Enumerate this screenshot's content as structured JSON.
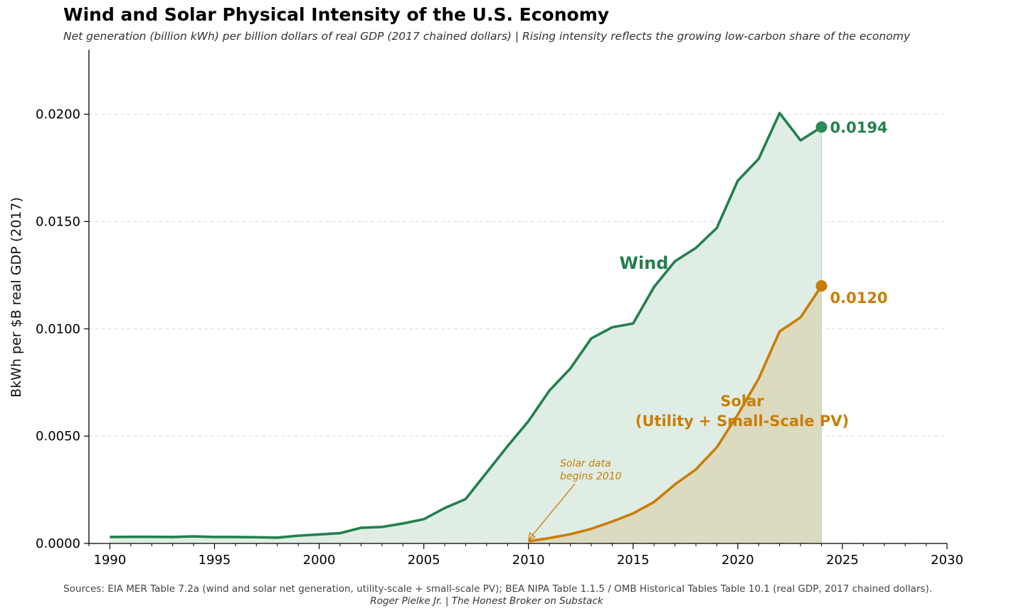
{
  "header": {
    "title": "Wind and Solar Physical Intensity of the U.S. Economy",
    "subtitle": "Net generation (billion kWh) per billion dollars of real GDP (2017 chained dollars)  |  Rising intensity reflects the growing low-carbon share of the economy"
  },
  "footer": {
    "source": "Sources: EIA MER Table 7.2a (wind and solar net generation, utility-scale + small-scale PV); BEA NIPA Table 1.1.5 / OMB Historical Tables Table 10.1 (real GDP, 2017 chained dollars).",
    "credit": "Roger Pielke Jr.  |  The Honest Broker on Substack"
  },
  "colors": {
    "wind": "#23804e",
    "solar": "#c97d08",
    "wind_fill": "#dfede4",
    "solar_fill": "#dcdbc0",
    "grid": "#d9d9d9",
    "axis": "#000000"
  },
  "chart_data": {
    "type": "area",
    "title": "Wind and Solar Physical Intensity of the U.S. Economy",
    "subtitle": "Net generation (billion kWh) per billion dollars of real GDP (2017 chained dollars)  |  Rising intensity reflects the growing low-carbon share of the economy",
    "xlabel": "",
    "ylabel": "BkWh per $B real GDP (2017)",
    "xlim": [
      1989,
      2030
    ],
    "ylim": [
      0,
      0.023
    ],
    "xticks": [
      1990,
      1995,
      2000,
      2005,
      2010,
      2015,
      2020,
      2025,
      2030
    ],
    "yticks": [
      0.0,
      0.005,
      0.01,
      0.015,
      0.02
    ],
    "ytick_labels": [
      "0.0000",
      "0.0050",
      "0.0100",
      "0.0150",
      "0.0200"
    ],
    "grid": "horizontal dashed",
    "series": [
      {
        "name": "Wind",
        "x": [
          1990,
          1991,
          1992,
          1993,
          1994,
          1995,
          1996,
          1997,
          1998,
          1999,
          2000,
          2001,
          2002,
          2003,
          2004,
          2005,
          2006,
          2007,
          2008,
          2009,
          2010,
          2011,
          2012,
          2013,
          2014,
          2015,
          2016,
          2017,
          2018,
          2019,
          2020,
          2021,
          2022,
          2023,
          2024
        ],
        "values": [
          0.0003,
          0.00031,
          0.00031,
          0.0003,
          0.00033,
          0.0003,
          0.0003,
          0.00029,
          0.00027,
          0.00036,
          0.00042,
          0.00048,
          0.00073,
          0.00077,
          0.00093,
          0.00113,
          0.00165,
          0.00207,
          0.0033,
          0.00453,
          0.0057,
          0.00712,
          0.00815,
          0.00955,
          0.01007,
          0.01025,
          0.01195,
          0.01315,
          0.01377,
          0.0147,
          0.0169,
          0.01792,
          0.02005,
          0.01878,
          0.0194
        ]
      },
      {
        "name": "Solar\n(Utility + Small-Scale PV)",
        "x": [
          2010,
          2011,
          2012,
          2013,
          2014,
          2015,
          2016,
          2017,
          2018,
          2019,
          2020,
          2021,
          2022,
          2023,
          2024
        ],
        "values": [
          0.0001,
          0.00025,
          0.00043,
          0.00068,
          0.00102,
          0.0014,
          0.00193,
          0.00275,
          0.00345,
          0.00448,
          0.006,
          0.00768,
          0.00988,
          0.01053,
          0.012
        ]
      }
    ],
    "annotations": {
      "wind_label": "Wind",
      "solar_label_line1": "Solar",
      "solar_label_line2": "(Utility + Small-Scale PV)",
      "wind_end_value": "0.0194",
      "solar_end_value": "0.0120",
      "solar_note_line1": "Solar data",
      "solar_note_line2": "begins 2010"
    }
  }
}
